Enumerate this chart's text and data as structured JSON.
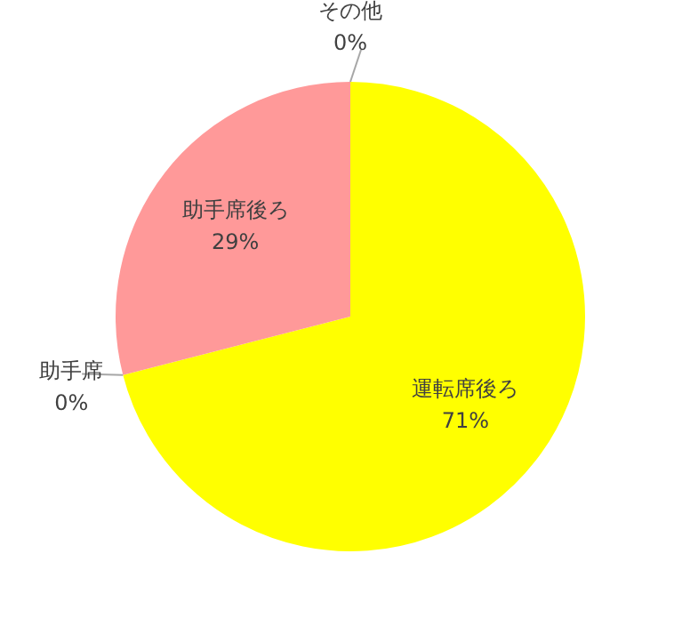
{
  "chart_data": {
    "type": "pie",
    "categories": [
      "運転席後ろ",
      "助手席",
      "助手席後ろ",
      "その他"
    ],
    "values": [
      71,
      0,
      29,
      0
    ],
    "colors": [
      "#ffff00",
      "#4f81bd",
      "#ff9999",
      "#9bbb59"
    ],
    "value_labels": [
      "71%",
      "0%",
      "29%",
      "0%"
    ],
    "legend": false
  }
}
